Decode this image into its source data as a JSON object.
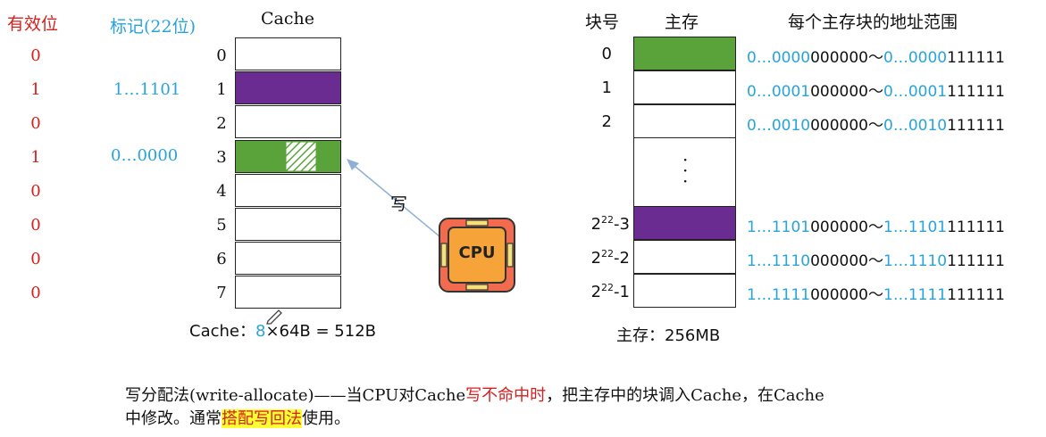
{
  "headers": {
    "valid": "有效位",
    "tag": "标记(22位)",
    "cache": "Cache",
    "block_no": "块号",
    "main_mem": "主存",
    "addr_range": "每个主存块的地址范围"
  },
  "cache_rows": [
    {
      "index": "0",
      "valid": "0",
      "tag": ""
    },
    {
      "index": "1",
      "valid": "1",
      "tag": "1…1101"
    },
    {
      "index": "2",
      "valid": "0",
      "tag": ""
    },
    {
      "index": "3",
      "valid": "1",
      "tag": "0…0000"
    },
    {
      "index": "4",
      "valid": "0",
      "tag": ""
    },
    {
      "index": "5",
      "valid": "0",
      "tag": ""
    },
    {
      "index": "6",
      "valid": "0",
      "tag": ""
    },
    {
      "index": "7",
      "valid": "0",
      "tag": ""
    }
  ],
  "cache_size": {
    "prefix": "Cache：",
    "count": "8",
    "rest": "×64B = 512B"
  },
  "write_label": "写",
  "cpu_label": "CPU",
  "memory_rows": [
    {
      "block": "0",
      "block_sup": "",
      "start_blue": "0…0000",
      "start_black": "000000～",
      "end_blue": "0…0000",
      "end_black": "111111"
    },
    {
      "block": "1",
      "block_sup": "",
      "start_blue": "0…0001",
      "start_black": "000000～",
      "end_blue": "0…0001",
      "end_black": "111111"
    },
    {
      "block": "2",
      "block_sup": "",
      "start_blue": "0…0010",
      "start_black": "000000～",
      "end_blue": "0…0010",
      "end_black": "111111"
    },
    {
      "block": "2",
      "block_sup": "22",
      "block_suffix": "-3",
      "start_blue": "1…1101",
      "start_black": "000000～",
      "end_blue": "1…1101",
      "end_black": "111111"
    },
    {
      "block": "2",
      "block_sup": "22",
      "block_suffix": "-2",
      "start_blue": "1…1110",
      "start_black": "000000～",
      "end_blue": "1…1110",
      "end_black": "111111"
    },
    {
      "block": "2",
      "block_sup": "22",
      "block_suffix": "-1",
      "start_blue": "1…1111",
      "start_black": "000000～",
      "end_blue": "1…1111",
      "end_black": "111111"
    }
  ],
  "main_mem_size": "主存：256MB",
  "footer": {
    "part1": "写分配法(write-allocate)——当CPU对Cache",
    "part2_red": "写不命中时",
    "part3": "，把主存中的块调入Cache，在Cache",
    "part4": "中修改。通常",
    "part5_hl": "搭配写回法",
    "part6": "使用。"
  },
  "colors": {
    "purple": "#6a2c91",
    "green": "#5aa33a",
    "blue_text": "#2aa3d8",
    "red_text": "#d42020",
    "cpu_outer": "#f26b4f",
    "cpu_inner": "#f6a43a"
  }
}
